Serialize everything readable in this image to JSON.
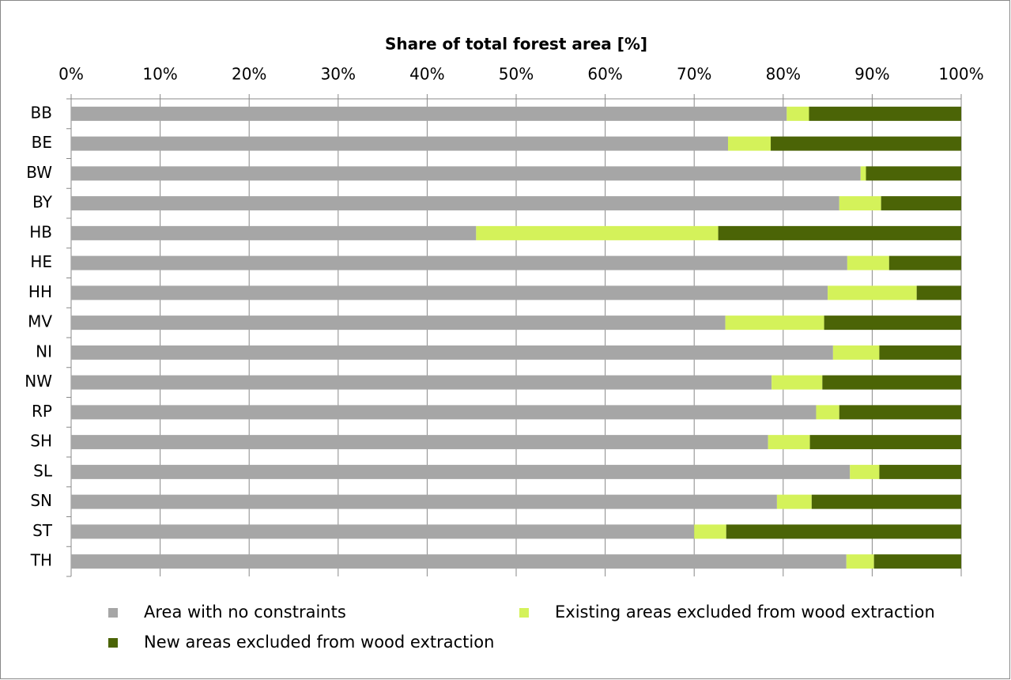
{
  "chart_data": {
    "type": "stacked-bar-horizontal",
    "title": "Share of total forest area [%]",
    "categories": [
      "BB",
      "BE",
      "BW",
      "BY",
      "HB",
      "HE",
      "HH",
      "MV",
      "NI",
      "NW",
      "RP",
      "SH",
      "SL",
      "SN",
      "ST",
      "TH"
    ],
    "series": [
      {
        "name": "Area with no constraints",
        "color": "#a6a6a6",
        "values": [
          80.4,
          73.8,
          88.7,
          86.3,
          45.5,
          87.2,
          85.0,
          73.5,
          85.6,
          78.7,
          83.7,
          78.3,
          87.5,
          79.3,
          70.0,
          87.1
        ]
      },
      {
        "name": "Existing areas excluded from wood extraction",
        "color": "#d4f25a",
        "values": [
          2.5,
          4.8,
          0.6,
          4.7,
          27.2,
          4.7,
          10.0,
          11.1,
          5.2,
          5.7,
          2.6,
          4.7,
          3.3,
          3.9,
          3.6,
          3.1
        ]
      },
      {
        "name": "New areas excluded from wood extraction",
        "color": "#4b6406",
        "values": [
          17.1,
          21.4,
          10.7,
          9.0,
          27.3,
          8.1,
          5.0,
          15.4,
          9.2,
          15.6,
          13.7,
          17.0,
          9.2,
          16.8,
          26.4,
          9.8
        ]
      }
    ],
    "xlim": [
      0,
      100
    ],
    "xticks": [
      {
        "value": 0,
        "label": "0%"
      },
      {
        "value": 10,
        "label": "10%"
      },
      {
        "value": 20,
        "label": "20%"
      },
      {
        "value": 30,
        "label": "30%"
      },
      {
        "value": 40,
        "label": "40%"
      },
      {
        "value": 50,
        "label": "50%"
      },
      {
        "value": 60,
        "label": "60%"
      },
      {
        "value": 70,
        "label": "70%"
      },
      {
        "value": 80,
        "label": "80%"
      },
      {
        "value": 90,
        "label": "90%"
      },
      {
        "value": 100,
        "label": "100%"
      }
    ],
    "grid": true
  }
}
